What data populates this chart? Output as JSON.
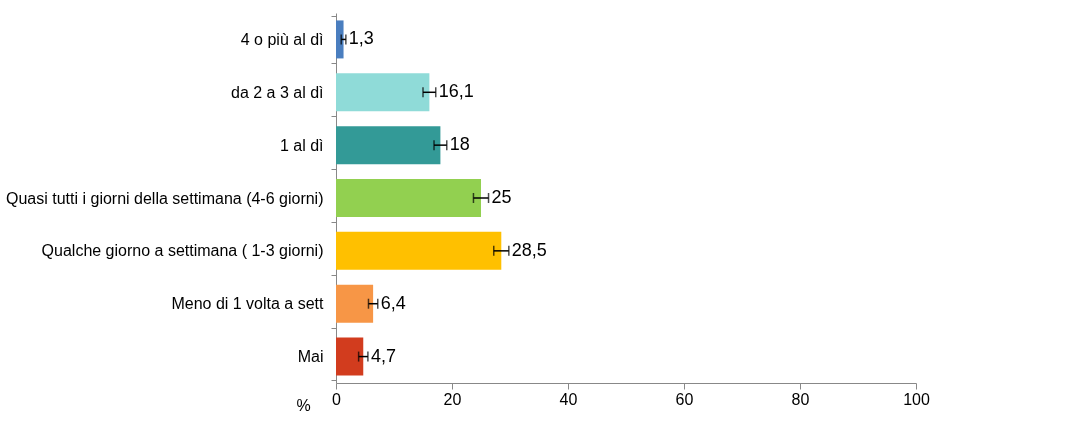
{
  "chart_data": {
    "type": "bar",
    "orientation": "horizontal",
    "xlabel": "%",
    "categories": [
      "4 o più al dì",
      "da 2 a 3 al dì",
      "1 al dì",
      "Quasi tutti i giorni della settimana (4-6 giorni)",
      "Qualche giorno a settimana ( 1-3 giorni)",
      "Meno di 1 volta a sett",
      "Mai"
    ],
    "values": [
      1.3,
      16.1,
      18,
      25,
      28.5,
      6.4,
      4.7
    ],
    "colors": [
      "#4a7ebf",
      "#8fdbd8",
      "#339a97",
      "#92d050",
      "#ffc000",
      "#f79646",
      "#d23c1e"
    ],
    "errors": [
      0.4,
      1.1,
      1.1,
      1.3,
      1.3,
      0.8,
      0.8
    ],
    "value_labels": [
      "1,3",
      "16,1",
      "18",
      "25",
      "28,5",
      "6,4",
      "4,7"
    ],
    "xlim": [
      0,
      100
    ],
    "xticks": [
      0,
      20,
      40,
      60,
      80,
      100
    ],
    "grid": false
  }
}
